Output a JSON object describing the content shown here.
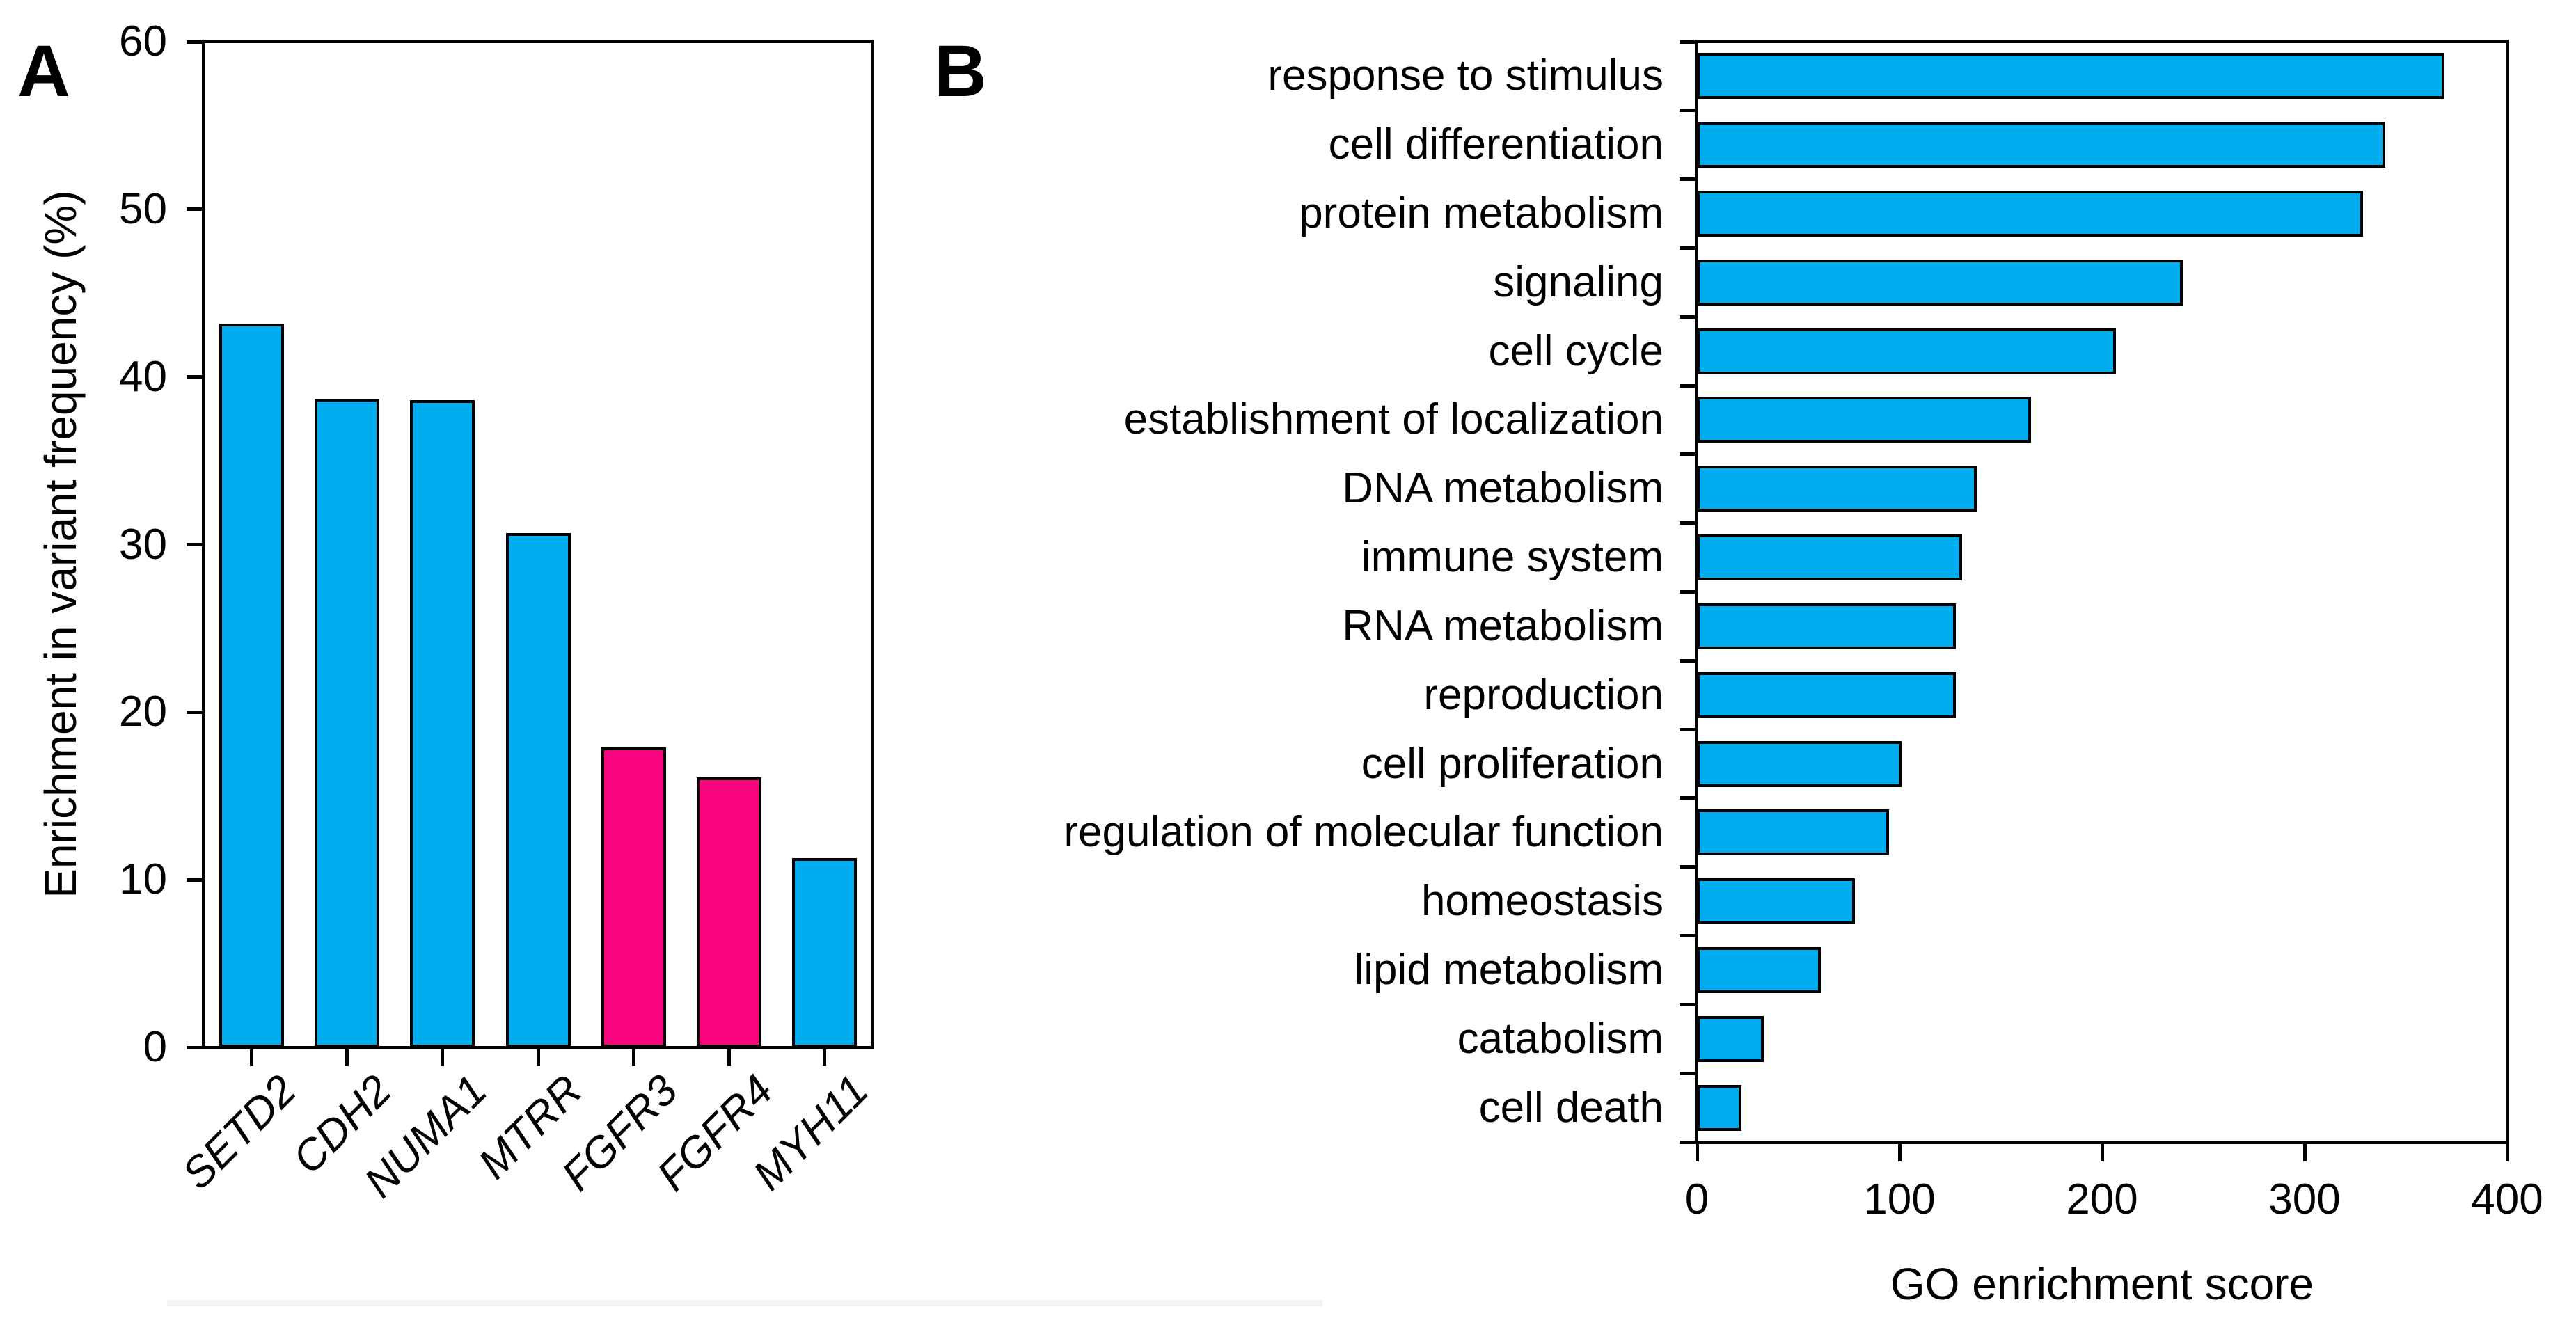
{
  "panels": {
    "a": {
      "label": "A",
      "ylabel": "Enrichment in variant frequency (%)"
    },
    "b": {
      "label": "B",
      "xlabel": "GO enrichment score"
    }
  },
  "colors": {
    "bar_blue": "#00AEEF",
    "bar_pink": "#F7047E",
    "axis_black": "#000000"
  },
  "chart_data": [
    {
      "type": "bar",
      "panel": "A",
      "categories": [
        "SETD2",
        "CDH2",
        "NUMA1",
        "MTRR",
        "FGFR3",
        "FGFR4",
        "MYH11"
      ],
      "values": [
        43.2,
        38.7,
        38.6,
        30.7,
        17.9,
        16.1,
        11.3
      ],
      "bar_color_keys": [
        "bar_blue",
        "bar_blue",
        "bar_blue",
        "bar_blue",
        "bar_pink",
        "bar_pink",
        "bar_blue"
      ],
      "ylabel": "Enrichment in variant frequency (%)",
      "ylim": [
        0,
        60
      ],
      "yticks": [
        0,
        10,
        20,
        30,
        40,
        50,
        60
      ],
      "grid": false,
      "category_label_style": "italic-rotated-45"
    },
    {
      "type": "bar-horizontal",
      "panel": "B",
      "categories": [
        "response to stimulus",
        "cell differentiation",
        "protein metabolism",
        "signaling",
        "cell cycle",
        "establishment of localization",
        "DNA metabolism",
        "immune system",
        "RNA metabolism",
        "reproduction",
        "cell proliferation",
        "regulation of molecular function",
        "homeostasis",
        "lipid metabolism",
        "catabolism",
        "cell death"
      ],
      "values": [
        369,
        340,
        329,
        240,
        207,
        165,
        138,
        131,
        128,
        128,
        101,
        95,
        78,
        61,
        33,
        22
      ],
      "xlabel": "GO enrichment score",
      "xlim": [
        0,
        400
      ],
      "xticks": [
        0,
        100,
        200,
        300,
        400
      ],
      "grid": false
    }
  ]
}
